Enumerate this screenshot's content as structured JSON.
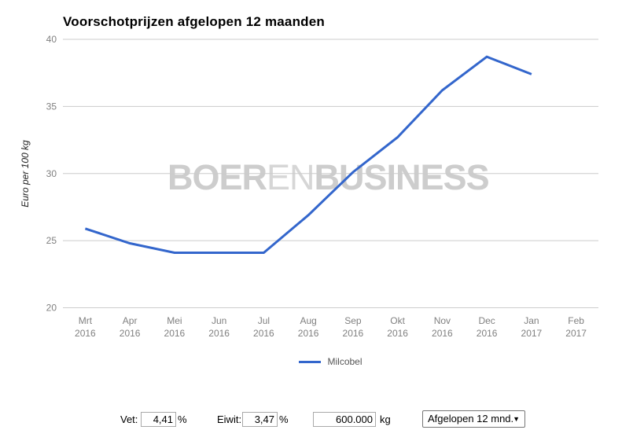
{
  "title": "Voorschotprijzen afgelopen 12 maanden",
  "chart_data": {
    "type": "line",
    "title": "Voorschotprijzen afgelopen 12 maanden",
    "ylabel": "Euro per 100 kg",
    "ylim": [
      20,
      40
    ],
    "yticks": [
      20,
      25,
      30,
      35,
      40
    ],
    "grid": true,
    "legend_position": "bottom",
    "categories": [
      "Mrt 2016",
      "Apr 2016",
      "Mei 2016",
      "Jun 2016",
      "Jul 2016",
      "Aug 2016",
      "Sep 2016",
      "Okt 2016",
      "Nov 2016",
      "Dec 2016",
      "Jan 2017",
      "Feb 2017"
    ],
    "months": [
      {
        "month": "Mrt",
        "year": "2016"
      },
      {
        "month": "Apr",
        "year": "2016"
      },
      {
        "month": "Mei",
        "year": "2016"
      },
      {
        "month": "Jun",
        "year": "2016"
      },
      {
        "month": "Jul",
        "year": "2016"
      },
      {
        "month": "Aug",
        "year": "2016"
      },
      {
        "month": "Sep",
        "year": "2016"
      },
      {
        "month": "Okt",
        "year": "2016"
      },
      {
        "month": "Nov",
        "year": "2016"
      },
      {
        "month": "Dec",
        "year": "2016"
      },
      {
        "month": "Jan",
        "year": "2017"
      },
      {
        "month": "Feb",
        "year": "2017"
      }
    ],
    "series": [
      {
        "name": "Milcobel",
        "color": "#3366cc",
        "values": [
          25.9,
          24.8,
          24.1,
          24.1,
          24.1,
          26.9,
          30.1,
          32.7,
          36.2,
          38.7,
          37.4,
          null
        ]
      }
    ]
  },
  "watermark": {
    "part1": "BOER",
    "part2": "EN",
    "part3": "BUSINESS"
  },
  "legend": {
    "label": "Milcobel",
    "color": "#3366cc"
  },
  "controls": {
    "vet": {
      "label": "Vet:",
      "value": "4,41",
      "unit": "%"
    },
    "eiwit": {
      "label": "Eiwit:",
      "value": "3,47",
      "unit": "%"
    },
    "volume": {
      "value": "600.000",
      "unit": "kg"
    },
    "period": {
      "value": "Afgelopen 12 mnd.",
      "dropdown_icon": "▼"
    }
  },
  "colors": {
    "line": "#3366cc",
    "grid": "#cccccc",
    "tick_label": "#808080",
    "axis_title": "#222222",
    "watermark": "#cdcdcd",
    "legend_text": "#555555"
  }
}
